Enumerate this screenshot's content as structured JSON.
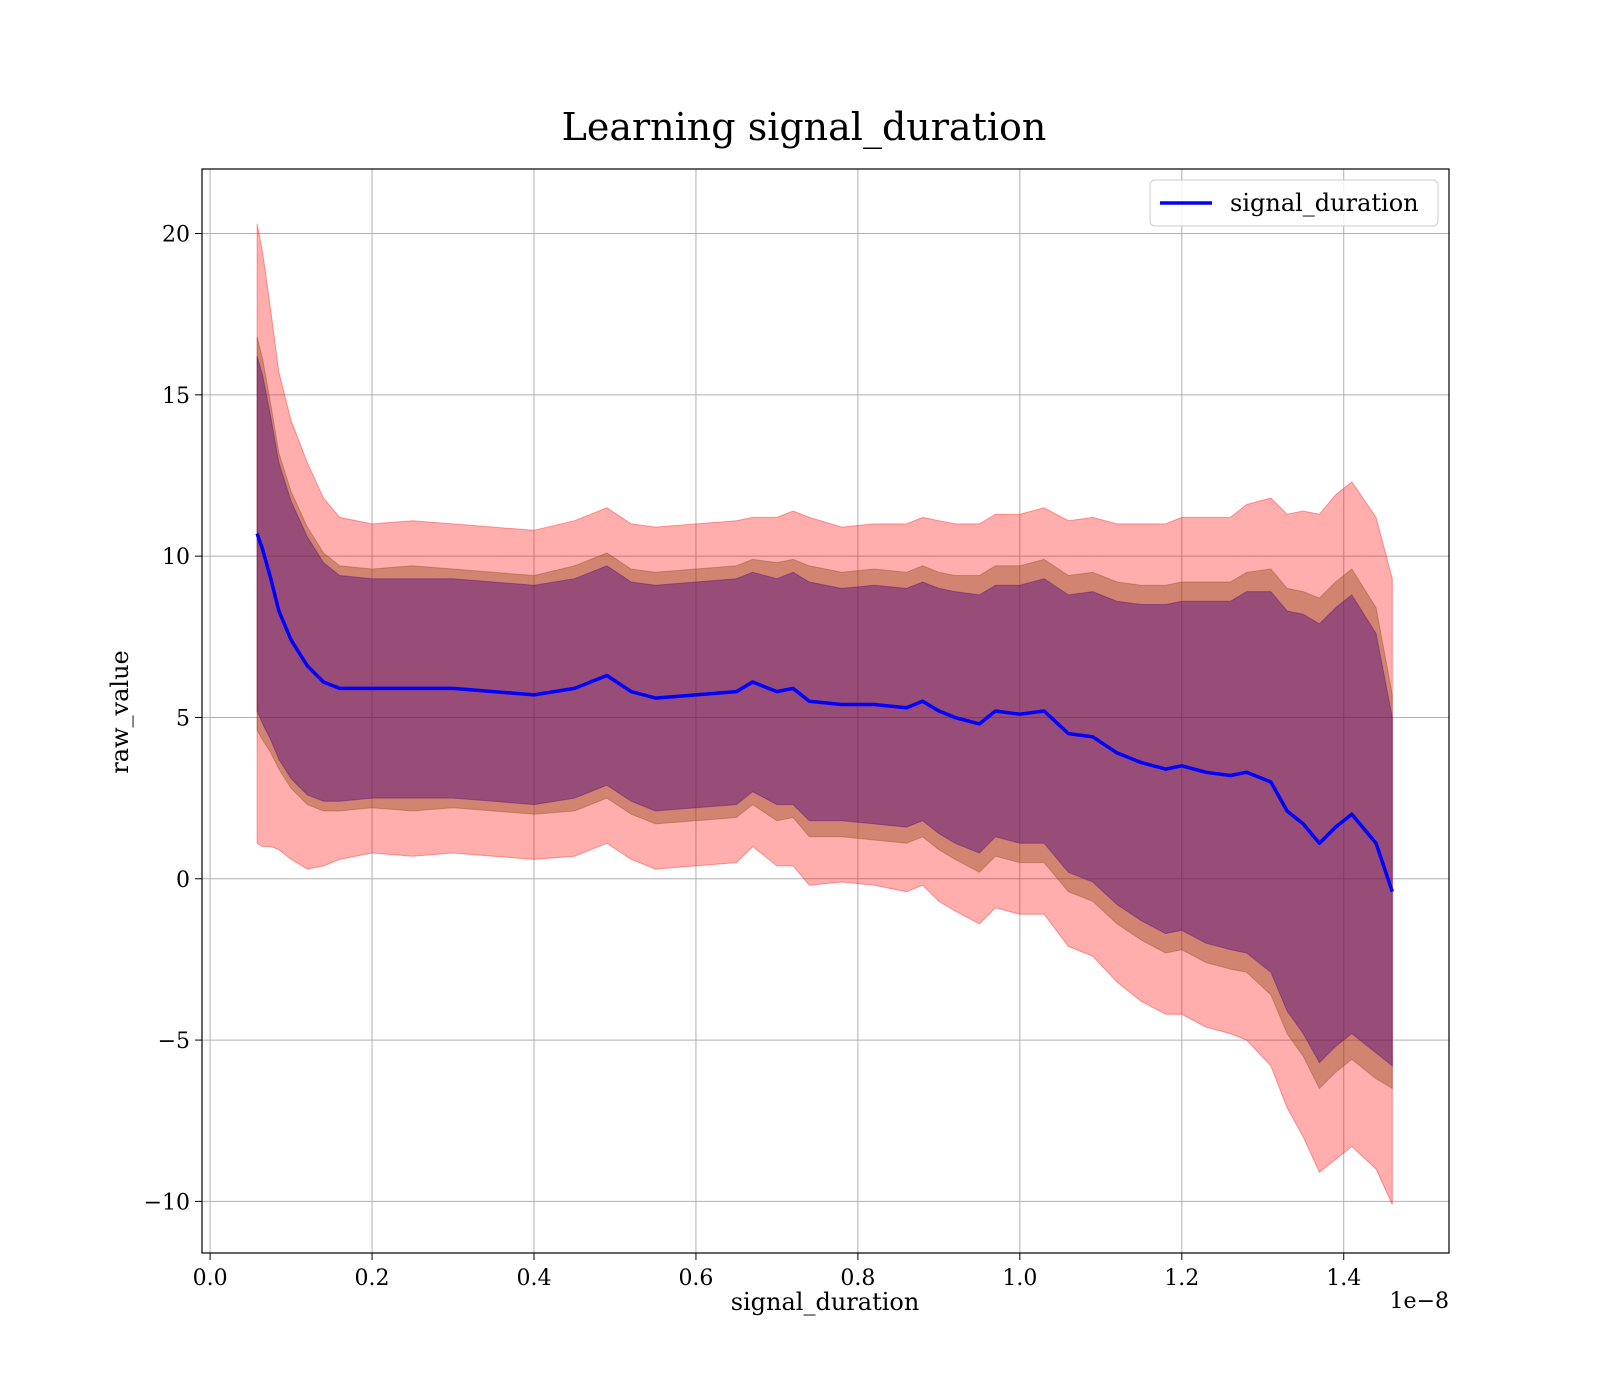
{
  "chart_data": {
    "type": "line",
    "title": "Learning signal_duration",
    "xlabel": "signal_duration",
    "ylabel": "raw_value",
    "x_offset_text": "1e−8",
    "xlim": [
      -0.01,
      1.53
    ],
    "ylim": [
      -11.6,
      22
    ],
    "x_ticks": [
      0.0,
      0.2,
      0.4,
      0.6,
      0.8,
      1.0,
      1.2,
      1.4
    ],
    "x_tick_labels": [
      "0.0",
      "0.2",
      "0.4",
      "0.6",
      "0.8",
      "1.0",
      "1.2",
      "1.4"
    ],
    "y_ticks": [
      -10,
      -5,
      0,
      5,
      10,
      15,
      20
    ],
    "y_tick_labels": [
      "−10",
      "−5",
      "0",
      "5",
      "10",
      "15",
      "20"
    ],
    "grid": true,
    "legend_position": "top-right",
    "colors": {
      "mean_line": "#0000ff",
      "band_outer": "#ff0000",
      "band_middle": "#8b4513",
      "band_inner": "#4b0082"
    },
    "series": [
      {
        "name": "signal_duration",
        "x": [
          0.058,
          0.065,
          0.075,
          0.085,
          0.1,
          0.12,
          0.14,
          0.16,
          0.2,
          0.25,
          0.3,
          0.35,
          0.4,
          0.45,
          0.49,
          0.52,
          0.55,
          0.6,
          0.65,
          0.67,
          0.7,
          0.72,
          0.74,
          0.78,
          0.82,
          0.86,
          0.88,
          0.9,
          0.92,
          0.95,
          0.97,
          1.0,
          1.03,
          1.06,
          1.09,
          1.12,
          1.15,
          1.18,
          1.2,
          1.23,
          1.26,
          1.28,
          1.31,
          1.33,
          1.35,
          1.37,
          1.39,
          1.41,
          1.44,
          1.46
        ],
        "y": [
          10.7,
          10.2,
          9.3,
          8.3,
          7.4,
          6.6,
          6.1,
          5.9,
          5.9,
          5.9,
          5.9,
          5.8,
          5.7,
          5.9,
          6.3,
          5.8,
          5.6,
          5.7,
          5.8,
          6.1,
          5.8,
          5.9,
          5.5,
          5.4,
          5.4,
          5.3,
          5.5,
          5.2,
          5.0,
          4.8,
          5.2,
          5.1,
          5.2,
          4.5,
          4.4,
          3.9,
          3.6,
          3.4,
          3.5,
          3.3,
          3.2,
          3.3,
          3.0,
          2.1,
          1.7,
          1.1,
          1.6,
          2.0,
          1.1,
          -0.4
        ]
      }
    ],
    "bands": [
      {
        "upper_offset": [
          9.6,
          9.2,
          8.3,
          7.4,
          6.8,
          6.3,
          5.7,
          5.3,
          5.1,
          5.2,
          5.1,
          5.1,
          5.1,
          5.2,
          5.2,
          5.2,
          5.3,
          5.3,
          5.3,
          5.1,
          5.4,
          5.5,
          5.7,
          5.5,
          5.6,
          5.7,
          5.7,
          5.9,
          6.0,
          6.2,
          6.1,
          6.2,
          6.3,
          6.6,
          6.8,
          7.1,
          7.4,
          7.6,
          7.7,
          7.9,
          8.0,
          8.3,
          8.8,
          9.2,
          9.7,
          10.2,
          10.3,
          10.3,
          10.1,
          9.7
        ],
        "lower_offset": [
          9.6,
          9.2,
          8.3,
          7.4,
          6.8,
          6.3,
          5.7,
          5.3,
          5.1,
          5.2,
          5.1,
          5.1,
          5.1,
          5.2,
          5.2,
          5.2,
          5.3,
          5.3,
          5.3,
          5.1,
          5.4,
          5.5,
          5.7,
          5.5,
          5.6,
          5.7,
          5.7,
          5.9,
          6.0,
          6.2,
          6.1,
          6.2,
          6.3,
          6.6,
          6.8,
          7.1,
          7.4,
          7.6,
          7.7,
          7.9,
          8.0,
          8.3,
          8.8,
          9.2,
          9.7,
          10.2,
          10.3,
          10.3,
          10.1,
          9.7
        ],
        "color_key": "band_outer",
        "opacity": 0.32
      },
      {
        "upper_offset": [
          6.1,
          5.9,
          5.4,
          4.9,
          4.6,
          4.3,
          4.0,
          3.8,
          3.7,
          3.8,
          3.7,
          3.7,
          3.7,
          3.8,
          3.8,
          3.8,
          3.9,
          3.9,
          3.9,
          3.8,
          4.0,
          4.0,
          4.2,
          4.1,
          4.2,
          4.2,
          4.2,
          4.3,
          4.4,
          4.6,
          4.5,
          4.6,
          4.7,
          4.9,
          5.1,
          5.3,
          5.5,
          5.7,
          5.7,
          5.9,
          6.0,
          6.2,
          6.6,
          6.9,
          7.2,
          7.6,
          7.6,
          7.6,
          7.3,
          6.1
        ],
        "lower_offset": [
          6.1,
          5.9,
          5.4,
          4.9,
          4.6,
          4.3,
          4.0,
          3.8,
          3.7,
          3.8,
          3.7,
          3.7,
          3.7,
          3.8,
          3.8,
          3.8,
          3.9,
          3.9,
          3.9,
          3.8,
          4.0,
          4.0,
          4.2,
          4.1,
          4.2,
          4.2,
          4.2,
          4.3,
          4.4,
          4.6,
          4.5,
          4.6,
          4.7,
          4.9,
          5.1,
          5.3,
          5.5,
          5.7,
          5.7,
          5.9,
          6.0,
          6.2,
          6.6,
          6.9,
          7.2,
          7.6,
          7.6,
          7.6,
          7.3,
          6.1
        ],
        "color_key": "band_middle",
        "opacity": 0.4
      },
      {
        "upper_offset": [
          5.5,
          5.4,
          5.0,
          4.6,
          4.3,
          4.0,
          3.7,
          3.5,
          3.4,
          3.4,
          3.4,
          3.4,
          3.4,
          3.4,
          3.4,
          3.4,
          3.5,
          3.5,
          3.5,
          3.4,
          3.5,
          3.6,
          3.7,
          3.6,
          3.7,
          3.7,
          3.7,
          3.8,
          3.9,
          4.0,
          3.9,
          4.0,
          4.1,
          4.3,
          4.5,
          4.7,
          4.9,
          5.1,
          5.1,
          5.3,
          5.4,
          5.6,
          5.9,
          6.2,
          6.5,
          6.8,
          6.8,
          6.8,
          6.5,
          5.4
        ],
        "lower_offset": [
          5.5,
          5.4,
          5.0,
          4.6,
          4.3,
          4.0,
          3.7,
          3.5,
          3.4,
          3.4,
          3.4,
          3.4,
          3.4,
          3.4,
          3.4,
          3.4,
          3.5,
          3.5,
          3.5,
          3.4,
          3.5,
          3.6,
          3.7,
          3.6,
          3.7,
          3.7,
          3.7,
          3.8,
          3.9,
          4.0,
          3.9,
          4.0,
          4.1,
          4.3,
          4.5,
          4.7,
          4.9,
          5.1,
          5.1,
          5.3,
          5.4,
          5.6,
          5.9,
          6.2,
          6.5,
          6.8,
          6.8,
          6.8,
          6.5,
          5.4
        ],
        "color_key": "band_inner",
        "opacity": 0.42
      }
    ],
    "legend": [
      {
        "label": "signal_duration",
        "color_key": "mean_line"
      }
    ]
  }
}
